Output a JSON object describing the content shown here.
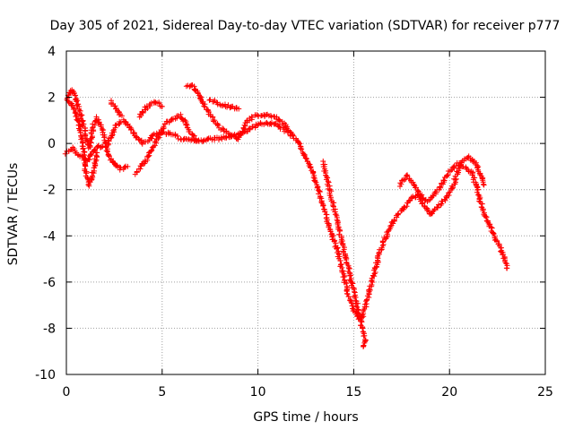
{
  "chart_data": {
    "type": "scatter",
    "title": "Day 305 of 2021, Sidereal Day-to-day VTEC variation (SDTVAR) for receiver p777",
    "xlabel": "GPS time / hours",
    "ylabel": "SDTVAR / TECUs",
    "xlim": [
      0,
      25
    ],
    "ylim": [
      -10,
      4
    ],
    "xticks": [
      0,
      5,
      10,
      15,
      20,
      25
    ],
    "yticks": [
      -10,
      -8,
      -6,
      -4,
      -2,
      0,
      2,
      4
    ],
    "grid": true,
    "marker": "+",
    "color": "#ff0000",
    "series": [
      {
        "name": "track-main",
        "points": [
          [
            0.0,
            -0.4
          ],
          [
            0.3,
            -0.2
          ],
          [
            0.6,
            -0.5
          ],
          [
            0.9,
            -0.6
          ],
          [
            1.1,
            -0.8
          ],
          [
            1.4,
            -0.3
          ],
          [
            1.7,
            -0.1
          ],
          [
            2.0,
            -0.2
          ],
          [
            2.3,
            0.2
          ],
          [
            2.6,
            0.8
          ],
          [
            3.0,
            1.0
          ],
          [
            3.3,
            0.7
          ],
          [
            3.6,
            0.3
          ],
          [
            4.0,
            0.0
          ],
          [
            4.5,
            0.3
          ],
          [
            5.0,
            0.5
          ],
          [
            5.5,
            0.4
          ],
          [
            6.0,
            0.2
          ],
          [
            6.5,
            0.2
          ],
          [
            7.0,
            0.1
          ],
          [
            7.5,
            0.2
          ],
          [
            8.0,
            0.2
          ],
          [
            8.5,
            0.3
          ],
          [
            9.0,
            0.4
          ],
          [
            9.5,
            0.6
          ],
          [
            10.0,
            0.8
          ],
          [
            10.5,
            0.9
          ],
          [
            11.0,
            0.8
          ],
          [
            11.5,
            0.5
          ],
          [
            12.0,
            0.2
          ],
          [
            12.3,
            -0.3
          ],
          [
            12.6,
            -0.8
          ],
          [
            12.9,
            -1.3
          ],
          [
            13.2,
            -2.2
          ],
          [
            13.5,
            -3.0
          ],
          [
            13.8,
            -3.8
          ],
          [
            14.1,
            -4.5
          ],
          [
            14.4,
            -5.5
          ],
          [
            14.7,
            -6.5
          ],
          [
            15.0,
            -7.2
          ],
          [
            15.3,
            -7.6
          ],
          [
            15.5,
            -7.4
          ],
          [
            15.8,
            -6.5
          ],
          [
            16.1,
            -5.5
          ],
          [
            16.4,
            -4.6
          ],
          [
            16.8,
            -3.8
          ],
          [
            17.2,
            -3.2
          ],
          [
            17.6,
            -2.8
          ],
          [
            18.0,
            -2.4
          ],
          [
            18.4,
            -2.2
          ],
          [
            18.8,
            -2.5
          ],
          [
            19.2,
            -2.2
          ],
          [
            19.6,
            -1.8
          ],
          [
            20.0,
            -1.2
          ],
          [
            20.4,
            -0.9
          ],
          [
            20.8,
            -1.0
          ],
          [
            21.2,
            -1.3
          ],
          [
            21.6,
            -2.5
          ],
          [
            22.0,
            -3.4
          ],
          [
            22.4,
            -4.1
          ],
          [
            22.8,
            -4.8
          ],
          [
            23.0,
            -5.4
          ]
        ]
      },
      {
        "name": "track-upper-a",
        "points": [
          [
            0.05,
            1.9
          ],
          [
            0.2,
            2.3
          ],
          [
            0.4,
            2.2
          ],
          [
            0.6,
            1.7
          ],
          [
            0.8,
            1.1
          ],
          [
            1.0,
            0.4
          ],
          [
            1.2,
            -0.2
          ],
          [
            1.4,
            0.8
          ],
          [
            1.6,
            1.1
          ],
          [
            1.9,
            0.6
          ],
          [
            2.2,
            -0.5
          ],
          [
            2.5,
            -0.9
          ],
          [
            2.8,
            -1.1
          ],
          [
            3.2,
            -1.0
          ]
        ]
      },
      {
        "name": "track-upper-b",
        "points": [
          [
            0.1,
            1.8
          ],
          [
            0.3,
            1.7
          ],
          [
            0.5,
            1.3
          ],
          [
            0.7,
            0.7
          ],
          [
            0.9,
            -0.3
          ],
          [
            1.0,
            -1.2
          ],
          [
            1.2,
            -1.8
          ],
          [
            1.4,
            -1.2
          ],
          [
            1.6,
            -0.4
          ]
        ]
      },
      {
        "name": "track-hump-a",
        "points": [
          [
            2.3,
            1.8
          ],
          [
            2.6,
            1.5
          ],
          [
            2.9,
            1.2
          ]
        ]
      },
      {
        "name": "track-hump-b",
        "points": [
          [
            3.8,
            1.2
          ],
          [
            4.1,
            1.5
          ],
          [
            4.4,
            1.7
          ],
          [
            4.7,
            1.8
          ],
          [
            5.0,
            1.6
          ]
        ]
      },
      {
        "name": "track-hump-c",
        "points": [
          [
            3.6,
            -1.3
          ],
          [
            4.0,
            -0.9
          ],
          [
            4.4,
            -0.4
          ],
          [
            4.8,
            0.3
          ],
          [
            5.2,
            0.9
          ],
          [
            5.6,
            1.1
          ],
          [
            6.0,
            1.2
          ],
          [
            6.4,
            0.6
          ],
          [
            6.8,
            0.1
          ]
        ]
      },
      {
        "name": "track-peak-d",
        "points": [
          [
            6.3,
            2.5
          ],
          [
            6.6,
            2.5
          ],
          [
            6.9,
            2.1
          ],
          [
            7.3,
            1.5
          ],
          [
            7.7,
            1.0
          ],
          [
            8.1,
            0.6
          ],
          [
            8.5,
            0.4
          ],
          [
            8.9,
            0.2
          ]
        ]
      },
      {
        "name": "track-arc-e",
        "points": [
          [
            7.5,
            1.9
          ],
          [
            8.0,
            1.7
          ],
          [
            8.5,
            1.6
          ],
          [
            9.0,
            1.5
          ]
        ]
      },
      {
        "name": "track-mid-f",
        "points": [
          [
            9.0,
            0.2
          ],
          [
            9.4,
            0.9
          ],
          [
            9.8,
            1.2
          ],
          [
            10.2,
            1.2
          ],
          [
            10.6,
            1.2
          ],
          [
            11.0,
            1.1
          ],
          [
            11.4,
            0.8
          ],
          [
            11.8,
            0.4
          ]
        ]
      },
      {
        "name": "track-outlier",
        "points": [
          [
            13.4,
            -0.8
          ],
          [
            15.6,
            -8.5
          ],
          [
            15.5,
            -8.8
          ]
        ]
      },
      {
        "name": "track-right-g",
        "points": [
          [
            17.4,
            -1.8
          ],
          [
            17.8,
            -1.4
          ],
          [
            18.2,
            -1.8
          ],
          [
            18.6,
            -2.6
          ],
          [
            19.0,
            -3.1
          ],
          [
            19.4,
            -2.7
          ],
          [
            19.8,
            -2.4
          ],
          [
            20.2,
            -1.8
          ],
          [
            20.6,
            -0.8
          ],
          [
            21.0,
            -0.6
          ],
          [
            21.4,
            -0.9
          ],
          [
            21.8,
            -1.8
          ]
        ]
      }
    ]
  }
}
